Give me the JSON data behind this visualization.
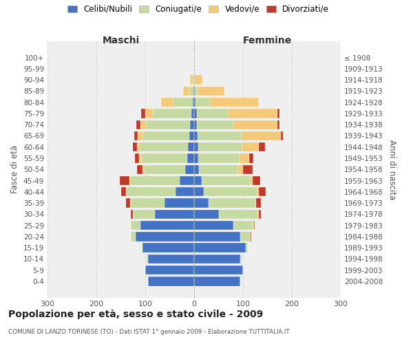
{
  "age_groups": [
    "0-4",
    "5-9",
    "10-14",
    "15-19",
    "20-24",
    "25-29",
    "30-34",
    "35-39",
    "40-44",
    "45-49",
    "50-54",
    "55-59",
    "60-64",
    "65-69",
    "70-74",
    "75-79",
    "80-84",
    "85-89",
    "90-94",
    "95-99",
    "100+"
  ],
  "birth_years": [
    "2004-2008",
    "1999-2003",
    "1994-1998",
    "1989-1993",
    "1984-1988",
    "1979-1983",
    "1974-1978",
    "1969-1973",
    "1964-1968",
    "1959-1963",
    "1954-1958",
    "1949-1953",
    "1944-1948",
    "1939-1943",
    "1934-1938",
    "1929-1933",
    "1924-1928",
    "1919-1923",
    "1914-1918",
    "1909-1913",
    "≤ 1908"
  ],
  "males_celibi": [
    95,
    100,
    95,
    105,
    120,
    110,
    80,
    60,
    38,
    30,
    18,
    14,
    12,
    10,
    8,
    5,
    3,
    2,
    0,
    0,
    0
  ],
  "males_coniugati": [
    0,
    0,
    2,
    2,
    10,
    20,
    45,
    70,
    100,
    100,
    85,
    95,
    100,
    95,
    90,
    80,
    40,
    8,
    3,
    0,
    0
  ],
  "males_vedovi": [
    0,
    0,
    0,
    0,
    0,
    0,
    0,
    1,
    2,
    2,
    2,
    4,
    5,
    10,
    12,
    15,
    25,
    12,
    5,
    0,
    0
  ],
  "males_divorziati": [
    0,
    0,
    0,
    0,
    0,
    0,
    5,
    8,
    10,
    20,
    12,
    8,
    8,
    8,
    8,
    8,
    0,
    0,
    0,
    0,
    0
  ],
  "females_nubili": [
    95,
    100,
    95,
    105,
    95,
    80,
    50,
    30,
    20,
    15,
    10,
    8,
    8,
    7,
    5,
    5,
    3,
    2,
    0,
    0,
    0
  ],
  "females_coniugate": [
    0,
    0,
    2,
    5,
    20,
    40,
    80,
    95,
    110,
    100,
    80,
    85,
    90,
    90,
    75,
    65,
    30,
    5,
    2,
    0,
    0
  ],
  "females_vedove": [
    0,
    0,
    0,
    0,
    0,
    2,
    2,
    2,
    2,
    5,
    10,
    20,
    35,
    80,
    90,
    100,
    100,
    55,
    15,
    2,
    0
  ],
  "females_divorziate": [
    0,
    0,
    0,
    0,
    2,
    2,
    5,
    10,
    15,
    15,
    20,
    8,
    12,
    5,
    5,
    5,
    0,
    0,
    0,
    0,
    0
  ],
  "col_celibi": "#4472C4",
  "col_coniugati": "#C5D9A0",
  "col_vedovi": "#F5C97A",
  "col_divorziati": "#C0392B",
  "xlim": 300,
  "title": "Popolazione per età, sesso e stato civile - 2009",
  "subtitle": "COMUNE DI LANZO TORINESE (TO) - Dati ISTAT 1° gennaio 2009 - Elaborazione TUTTITALIA.IT",
  "ylabel_left": "Fasce di età",
  "ylabel_right": "Anni di nascita",
  "xlabel_left": "Maschi",
  "xlabel_right": "Femmine",
  "legend_labels": [
    "Celibi/Nubili",
    "Coniugati/e",
    "Vedovi/e",
    "Divorziati/e"
  ],
  "bg_color": "#efefef",
  "grid_color": "#cccccc"
}
